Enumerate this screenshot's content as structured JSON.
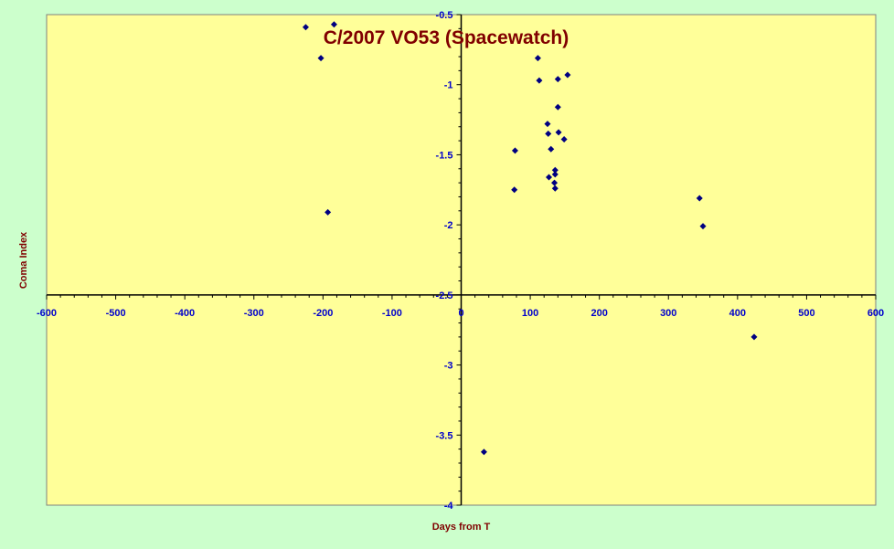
{
  "chart_data": {
    "type": "scatter",
    "title": "C/2007 VO53 (Spacewatch)",
    "xlabel": "Days from T",
    "ylabel": "Coma Index",
    "xlim": [
      -600,
      600
    ],
    "ylim": [
      -4,
      -0.5
    ],
    "x_ticks": [
      -600,
      -500,
      -400,
      -300,
      -200,
      -100,
      0,
      100,
      200,
      300,
      400,
      500,
      600
    ],
    "y_ticks": [
      -0.5,
      -1,
      -1.5,
      -2,
      -2.5,
      -3,
      -3.5,
      -4
    ],
    "x_axis_crosses_at_y": -2.5,
    "y_axis_crosses_at_x": 0,
    "grid": false,
    "legend": "none",
    "colors": {
      "plot_background": "#ffff99",
      "page_background": "#ccffcc",
      "marker": "#000080",
      "title": "#800000",
      "tick_labels": "#0000cc"
    },
    "series": [
      {
        "marker": "diamond",
        "points": [
          {
            "x": -225,
            "y": -0.59
          },
          {
            "x": -184,
            "y": -0.57
          },
          {
            "x": -203,
            "y": -0.81
          },
          {
            "x": -193,
            "y": -1.91
          },
          {
            "x": 111,
            "y": -0.81
          },
          {
            "x": 113,
            "y": -0.97
          },
          {
            "x": 154,
            "y": -0.93
          },
          {
            "x": 140,
            "y": -0.96
          },
          {
            "x": 140,
            "y": -1.16
          },
          {
            "x": 125,
            "y": -1.28
          },
          {
            "x": 126,
            "y": -1.35
          },
          {
            "x": 141,
            "y": -1.34
          },
          {
            "x": 149,
            "y": -1.39
          },
          {
            "x": 130,
            "y": -1.46
          },
          {
            "x": 78,
            "y": -1.47
          },
          {
            "x": 136,
            "y": -1.61
          },
          {
            "x": 136,
            "y": -1.64
          },
          {
            "x": 127,
            "y": -1.66
          },
          {
            "x": 135,
            "y": -1.7
          },
          {
            "x": 136,
            "y": -1.74
          },
          {
            "x": 77,
            "y": -1.75
          },
          {
            "x": 345,
            "y": -1.81
          },
          {
            "x": 350,
            "y": -2.01
          },
          {
            "x": 424,
            "y": -2.8
          },
          {
            "x": 33,
            "y": -3.62
          }
        ]
      }
    ]
  }
}
